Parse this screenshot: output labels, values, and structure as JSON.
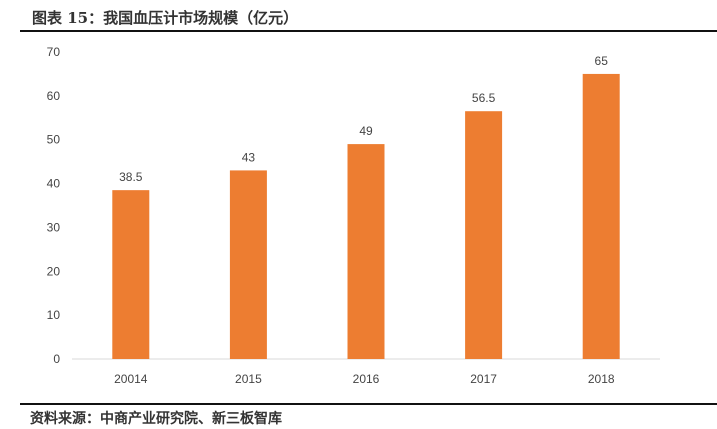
{
  "title": "图表 15：我国血压计市场规模（亿元）",
  "source": "资料来源：中商产业研究院、新三板智库",
  "chart_data": {
    "type": "bar",
    "categories": [
      "20014",
      "2015",
      "2016",
      "2017",
      "2018"
    ],
    "values": [
      38.5,
      43,
      49,
      56.5,
      65
    ],
    "data_labels": [
      "38.5",
      "43",
      "49",
      "56.5",
      "65"
    ],
    "yticks": [
      "0",
      "10",
      "20",
      "30",
      "40",
      "50",
      "60",
      "70"
    ],
    "ylim": [
      0,
      70
    ],
    "grid": false,
    "bar_color": "#ED7D31"
  }
}
